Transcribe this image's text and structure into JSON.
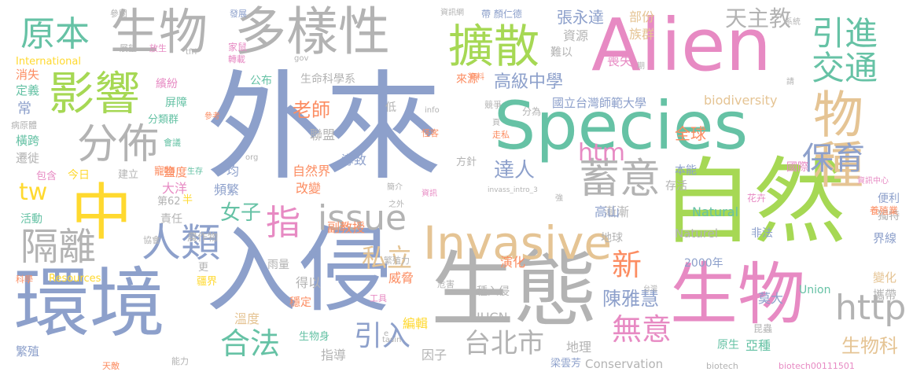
{
  "palette": {
    "blue": "#8da0cb",
    "green": "#66c2a5",
    "orange": "#fc8d62",
    "pink": "#e78ac3",
    "lime": "#a6d854",
    "yellow": "#ffd92f",
    "tan": "#e5c494",
    "gray": "#b3b3b3"
  },
  "words": [
    {
      "text": "外來",
      "color": "blue"
    },
    {
      "text": "入侵",
      "color": "blue"
    },
    {
      "text": "Alien",
      "color": "pink"
    },
    {
      "text": "自然",
      "color": "lime"
    },
    {
      "text": "Species",
      "color": "green"
    },
    {
      "text": "環境",
      "color": "blue"
    },
    {
      "text": "生態",
      "color": "gray"
    },
    {
      "text": "中",
      "color": "yellow"
    },
    {
      "text": "生物",
      "color": "pink"
    },
    {
      "text": "Invasive",
      "color": "tan"
    },
    {
      "text": "多樣性",
      "color": "gray"
    },
    {
      "text": "生物",
      "color": "gray"
    },
    {
      "text": "擴散",
      "color": "lime"
    },
    {
      "text": "影響",
      "color": "lime"
    },
    {
      "text": "原本",
      "color": "green"
    },
    {
      "text": "分佈",
      "color": "gray"
    },
    {
      "text": "人類",
      "color": "blue"
    },
    {
      "text": "隔離",
      "color": "gray"
    },
    {
      "text": "蓄意",
      "color": "gray"
    },
    {
      "text": "物種",
      "color": "tan"
    },
    {
      "text": "引進",
      "color": "green"
    },
    {
      "text": "交通",
      "color": "green"
    },
    {
      "text": "保育",
      "color": "blue"
    },
    {
      "text": "issue",
      "color": "gray"
    },
    {
      "text": "合法",
      "color": "green"
    },
    {
      "text": "無意",
      "color": "pink"
    },
    {
      "text": "http",
      "color": "gray"
    },
    {
      "text": "引入",
      "color": "blue"
    },
    {
      "text": "台北市",
      "color": "gray"
    },
    {
      "text": "指",
      "color": "pink"
    },
    {
      "text": "htm",
      "color": "pink"
    },
    {
      "text": "tw",
      "color": "yellow"
    },
    {
      "text": "天主教",
      "color": "gray"
    },
    {
      "text": "新",
      "color": "orange"
    },
    {
      "text": "私立",
      "color": "tan"
    },
    {
      "text": "女子",
      "color": "green"
    },
    {
      "text": "達人",
      "color": "blue"
    },
    {
      "text": "老師",
      "color": "orange"
    },
    {
      "text": "陳雅慧",
      "color": "blue"
    },
    {
      "text": "生物科",
      "color": "tan"
    },
    {
      "text": "高級中學",
      "color": "blue"
    },
    {
      "text": "國立台灣師範大學",
      "color": "blue"
    },
    {
      "text": "biodiversity",
      "color": "tan"
    },
    {
      "text": "張永達",
      "color": "blue"
    },
    {
      "text": "部份",
      "color": "tan"
    },
    {
      "text": "族群",
      "color": "tan"
    },
    {
      "text": "資源",
      "color": "gray"
    },
    {
      "text": "難以",
      "color": "gray"
    },
    {
      "text": "喪失",
      "color": "pink"
    },
    {
      "text": "來源",
      "color": "orange"
    },
    {
      "text": "資料",
      "color": "orange"
    },
    {
      "text": "分為",
      "color": "gray"
    },
    {
      "text": "全球",
      "color": "orange"
    },
    {
      "text": "國際",
      "color": "pink"
    },
    {
      "text": "本能",
      "color": "blue"
    },
    {
      "text": "存活",
      "color": "gray"
    },
    {
      "text": "漸漸",
      "color": "gray"
    },
    {
      "text": "高山",
      "color": "blue"
    },
    {
      "text": "Natural",
      "color": "green"
    },
    {
      "text": "Naturel",
      "color": "gray"
    },
    {
      "text": "2000年",
      "color": "blue"
    },
    {
      "text": "地球",
      "color": "gray"
    },
    {
      "text": "非法",
      "color": "blue"
    },
    {
      "text": "界線",
      "color": "blue"
    },
    {
      "text": "變化",
      "color": "tan"
    },
    {
      "text": "攜帶",
      "color": "gray"
    },
    {
      "text": "Union",
      "color": "green"
    },
    {
      "text": "莫大",
      "color": "blue"
    },
    {
      "text": "便利",
      "color": "blue"
    },
    {
      "text": "獨特",
      "color": "gray"
    },
    {
      "text": "養殖業",
      "color": "orange"
    },
    {
      "text": "花卉",
      "color": "pink"
    },
    {
      "text": "昆蟲",
      "color": "gray"
    },
    {
      "text": "亞種",
      "color": "green"
    },
    {
      "text": "原生",
      "color": "green"
    },
    {
      "text": "biotech",
      "color": "gray"
    },
    {
      "text": "biotech00111501",
      "color": "pink"
    },
    {
      "text": "Conservation",
      "color": "gray"
    },
    {
      "text": "梁雲芳",
      "color": "blue"
    },
    {
      "text": "地理",
      "color": "gray"
    },
    {
      "text": "因子",
      "color": "gray"
    },
    {
      "text": "指導",
      "color": "gray"
    },
    {
      "text": "IUCN",
      "color": "gray"
    },
    {
      "text": "編輯",
      "color": "yellow"
    },
    {
      "text": "危害",
      "color": "gray"
    },
    {
      "text": "種入侵",
      "color": "gray"
    },
    {
      "text": "威脅",
      "color": "orange"
    },
    {
      "text": "演化",
      "color": "orange"
    },
    {
      "text": "繁殖力",
      "color": "gray"
    },
    {
      "text": "得以",
      "color": "gray"
    },
    {
      "text": "穩定",
      "color": "orange"
    },
    {
      "text": "溫度",
      "color": "tan"
    },
    {
      "text": "雨量",
      "color": "gray"
    },
    {
      "text": "生物身",
      "color": "green"
    },
    {
      "text": "頻繁",
      "color": "blue"
    },
    {
      "text": "副教授",
      "color": "orange"
    },
    {
      "text": "改變",
      "color": "orange"
    },
    {
      "text": "自然界",
      "color": "orange"
    },
    {
      "text": "導致",
      "color": "blue"
    },
    {
      "text": "聯盟",
      "color": "gray"
    },
    {
      "text": "低",
      "color": "gray"
    },
    {
      "text": "生命科學系",
      "color": "gray"
    },
    {
      "text": "公布",
      "color": "green"
    },
    {
      "text": "均",
      "color": "blue"
    },
    {
      "text": "鹽度",
      "color": "orange"
    },
    {
      "text": "大洋",
      "color": "pink"
    },
    {
      "text": "責任",
      "color": "gray"
    },
    {
      "text": "農作物",
      "color": "gray"
    },
    {
      "text": "更",
      "color": "gray"
    },
    {
      "text": "疆界",
      "color": "yellow"
    },
    {
      "text": "Resources",
      "color": "yellow"
    },
    {
      "text": "活動",
      "color": "green"
    },
    {
      "text": "協會",
      "color": "gray"
    },
    {
      "text": "科學",
      "color": "orange"
    },
    {
      "text": "繁殖",
      "color": "blue"
    },
    {
      "text": "天敵",
      "color": "orange"
    },
    {
      "text": "能力",
      "color": "gray"
    },
    {
      "text": "第62",
      "color": "gray"
    },
    {
      "text": "寵物",
      "color": "orange"
    },
    {
      "text": "建立",
      "color": "gray"
    },
    {
      "text": "今日",
      "color": "yellow"
    },
    {
      "text": "包含",
      "color": "pink"
    },
    {
      "text": "遷徙",
      "color": "gray"
    },
    {
      "text": "橫跨",
      "color": "green"
    },
    {
      "text": "病原體",
      "color": "gray"
    },
    {
      "text": "常",
      "color": "blue"
    },
    {
      "text": "定義",
      "color": "green"
    },
    {
      "text": "消失",
      "color": "orange"
    },
    {
      "text": "屏障",
      "color": "green"
    },
    {
      "text": "分類群",
      "color": "green"
    },
    {
      "text": "繽紛",
      "color": "pink"
    },
    {
      "text": "會議",
      "color": "green"
    },
    {
      "text": "參考",
      "color": "orange"
    },
    {
      "text": "生存",
      "color": "green"
    },
    {
      "text": "半",
      "color": "yellow"
    },
    {
      "text": "International",
      "color": "yellow"
    },
    {
      "text": "展望",
      "color": "gray"
    },
    {
      "text": "放生",
      "color": "pink"
    },
    {
      "text": "tfri",
      "color": "gray"
    },
    {
      "text": "參閱",
      "color": "gray"
    },
    {
      "text": "發展",
      "color": "blue"
    },
    {
      "text": "家鼠",
      "color": "pink"
    },
    {
      "text": "轉載",
      "color": "pink"
    },
    {
      "text": "gov",
      "color": "gray"
    },
    {
      "text": "資訊網",
      "color": "gray"
    },
    {
      "text": "帶 顏仁德",
      "color": "blue"
    },
    {
      "text": "系統",
      "color": "gray"
    },
    {
      "text": "期",
      "color": "gray"
    },
    {
      "text": "請",
      "color": "gray"
    },
    {
      "text": "info",
      "color": "gray"
    },
    {
      "text": "競爭",
      "color": "gray"
    },
    {
      "text": "怪客",
      "color": "orange"
    },
    {
      "text": "頁",
      "color": "gray"
    },
    {
      "text": "走私",
      "color": "orange"
    },
    {
      "text": "方針",
      "color": "gray"
    },
    {
      "text": "org",
      "color": "gray"
    },
    {
      "text": "簡介",
      "color": "gray"
    },
    {
      "text": "資訊",
      "color": "pink"
    },
    {
      "text": "之外",
      "color": "gray"
    },
    {
      "text": "invass_intro_3",
      "color": "gray"
    },
    {
      "text": "強",
      "color": "gray"
    },
    {
      "text": "資訊中心",
      "color": "pink"
    },
    {
      "text": "台灣",
      "color": "gray"
    },
    {
      "text": "工具",
      "color": "pink"
    },
    {
      "text": "非",
      "color": "blue"
    },
    {
      "text": "e",
      "color": "gray"
    },
    {
      "text": "tasin",
      "color": "gray"
    }
  ]
}
